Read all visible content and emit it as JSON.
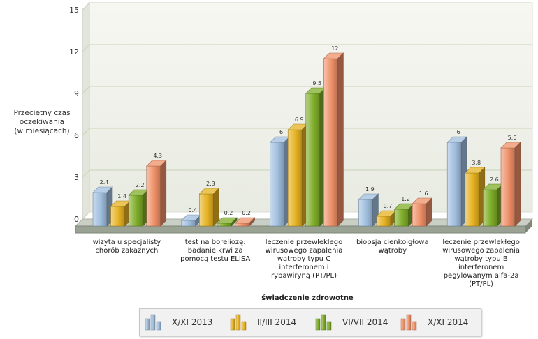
{
  "chart_data": {
    "type": "bar",
    "categories": [
      "wizyta u specjalisty chorób zakaźnych",
      "test na boreliozę: badanie krwi za pomocą testu ELISA",
      "leczenie przewlekłego wirusowego zapalenia wątroby typu C interferonem i rybawiryną (PT/PL)",
      "biopsja cienkoigłowa wątroby",
      "leczenie przewlekłego wirusowego zapalenia wątroby typu B interferonem pegylowanym alfa-2a (PT/PL)"
    ],
    "category_lines": [
      [
        "wizyta u specjalisty",
        "chorób zakaźnych"
      ],
      [
        "test na boreliozę:",
        "badanie krwi za",
        "pomocą testu ELISA"
      ],
      [
        "leczenie przewlekłego",
        "wirusowego zapalenia",
        "wątroby typu C",
        "interferonem i",
        "rybawiryną (PT/PL)"
      ],
      [
        "biopsja cienkoigłowa",
        "wątroby"
      ],
      [
        "leczenie przewlekłego",
        "wirusowego zapalenia",
        "wątroby typu B",
        "interferonem",
        "pegylowanym alfa-2a",
        "(PT/PL)"
      ]
    ],
    "series": [
      {
        "name": "X/XI 2013",
        "values": [
          2.4,
          0.4,
          6,
          1.9,
          6
        ],
        "labels": [
          "2.4",
          "0.4",
          "6",
          "1.9",
          "6"
        ],
        "color": "#9fbede"
      },
      {
        "name": "II/III 2014",
        "values": [
          1.4,
          2.3,
          6.9,
          0.7,
          3.8
        ],
        "labels": [
          "1.4",
          "2.3",
          "6.9",
          "0.7",
          "3.8"
        ],
        "color": "#e6b222"
      },
      {
        "name": "VI/VII 2014",
        "values": [
          2.2,
          0.2,
          9.5,
          1.2,
          2.6
        ],
        "labels": [
          "2.2",
          "0.2",
          "9.5",
          "1.2",
          "2.6"
        ],
        "color": "#7fae2a"
      },
      {
        "name": "X/XI 2014",
        "values": [
          4.3,
          0.2,
          12,
          1.6,
          5.6
        ],
        "labels": [
          "4.3",
          "0.2",
          "12",
          "1.6",
          "5.6"
        ],
        "color": "#ee9068"
      }
    ],
    "yticks": [
      "0",
      "3",
      "6",
      "9",
      "12",
      "15"
    ],
    "ylim": [
      0,
      15
    ],
    "ylabel": [
      "Przeciętny czas",
      "oczekiwania",
      "(w miesiącach)"
    ],
    "xlabel": "świadczenie zdrowotne",
    "grid": true,
    "legend_position": "bottom"
  }
}
